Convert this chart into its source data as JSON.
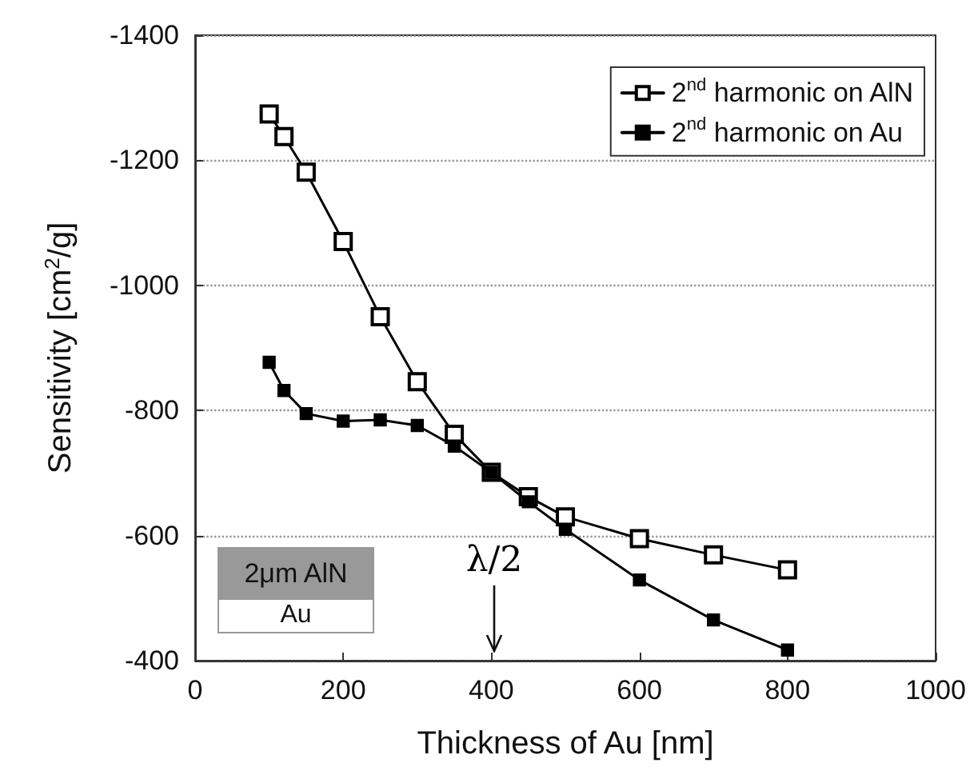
{
  "chart_data": {
    "type": "line",
    "xlabel": "Thickness of Au [nm]",
    "ylabel": "Sensitivity [cm$^{2}$/g]",
    "xlim": [
      0,
      1000
    ],
    "xticks": [
      0,
      200,
      400,
      600,
      800,
      1000
    ],
    "ylim": [
      -400,
      -1400
    ],
    "yticks": [
      -1400,
      -1200,
      -1000,
      -800,
      -600,
      -400
    ],
    "grid": "y",
    "legend": "top right",
    "marker": "square",
    "line_style": "solid",
    "annotations": [
      "2μm AlN",
      "Au",
      "λ/2"
    ],
    "x": [
      100,
      120,
      150,
      200,
      250,
      300,
      350,
      400,
      450,
      500,
      600,
      700,
      800
    ],
    "series": [
      {
        "name": "2$^{nd}$ harmonic on AlN",
        "color": "#000000",
        "values": [
          -1274,
          -1238,
          -1181,
          -1070,
          -950,
          -846,
          -762,
          -701,
          -662,
          -630,
          -595,
          -569,
          -545
        ]
      },
      {
        "name": "2$^{nd}$ harmonic on Au",
        "color": "#000000",
        "values": [
          -877,
          -832,
          -795,
          -783,
          -785,
          -776,
          -743,
          -701,
          -654,
          -610,
          -529,
          -465,
          -417
        ]
      }
    ]
  }
}
